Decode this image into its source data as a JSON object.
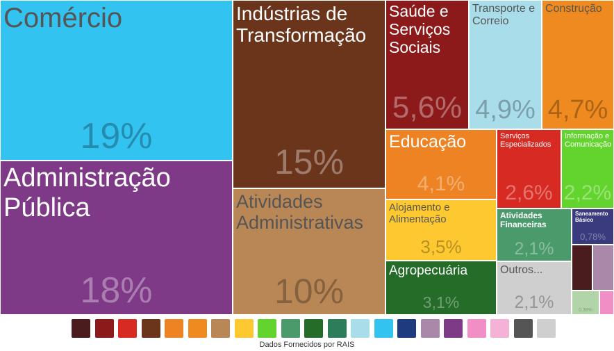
{
  "chart_data": {
    "type": "treemap",
    "categories": [
      "Comércio",
      "Administração Pública",
      "Indústrias de Transformação",
      "Atividades Administrativas",
      "Saúde e Serviços Sociais",
      "Transporte e Correio",
      "Construção",
      "Educação",
      "Serviços Especializados",
      "Informação e Comunicação",
      "Alojamento e Alimentação",
      "Atividades Financeiras",
      "Saneamento Básico",
      "Agropecuária",
      "Outros...",
      null,
      null,
      null,
      null
    ],
    "values": [
      19,
      18,
      15,
      10,
      5.6,
      4.9,
      4.7,
      4.1,
      2.6,
      2.2,
      3.5,
      2.1,
      0.78,
      3.1,
      2.1,
      0.43,
      0.48,
      0.38,
      0.16
    ],
    "value_labels": [
      "19%",
      "18%",
      "15%",
      "10%",
      "5,6%",
      "4,9%",
      "4,7%",
      "4,1%",
      "2,6%",
      "2,2%",
      "3,5%",
      "2,1%",
      "0,78%",
      "3,1%",
      "2,1%",
      null,
      null,
      "0,38%",
      null
    ],
    "colors": [
      "#33c3f1",
      "#7f3a87",
      "#6b351c",
      "#b98756",
      "#8d1a1b",
      "#a9dde9",
      "#ee8a1f",
      "#ee8324",
      "#d62a22",
      "#63d42e",
      "#fdc830",
      "#4b9a6b",
      "#3a3b7f",
      "#246c27",
      "#cfcfcf",
      "#4b1c1d",
      "#a988a9",
      "#b2d4a9",
      "#f08ec5"
    ],
    "source": "Dados Fornecidos por RAIS"
  }
}
